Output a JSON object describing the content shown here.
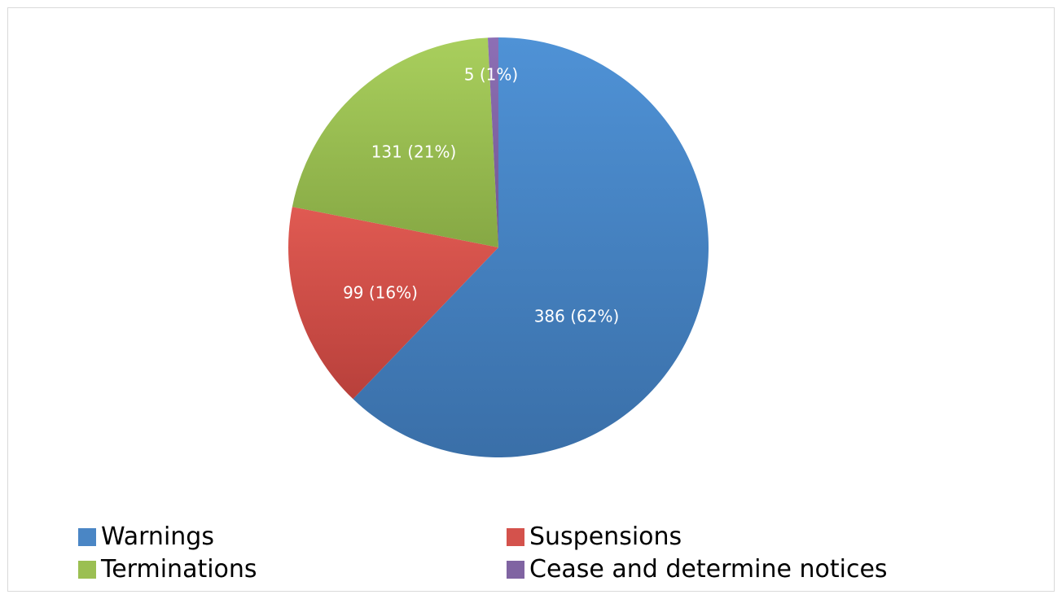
{
  "chart_data": {
    "type": "pie",
    "categories": [
      "Warnings",
      "Suspensions",
      "Terminations",
      "Cease and determine notices"
    ],
    "values": [
      386,
      99,
      131,
      5
    ],
    "data_labels": [
      "386 (62%)",
      "99 (16%)",
      "131 (21%)",
      "5 (1%)"
    ],
    "colors": [
      "#4a86c5",
      "#d4524c",
      "#9bbf52",
      "#8064a2"
    ],
    "legend_position": "bottom",
    "start_angle": "12 o'clock",
    "direction": "clockwise"
  },
  "legend": {
    "items": [
      {
        "label": "Warnings",
        "color": "#4a86c5"
      },
      {
        "label": "Suspensions",
        "color": "#d4524c"
      },
      {
        "label": "Terminations",
        "color": "#9bbf52"
      },
      {
        "label": "Cease and determine notices",
        "color": "#8064a2"
      }
    ]
  }
}
